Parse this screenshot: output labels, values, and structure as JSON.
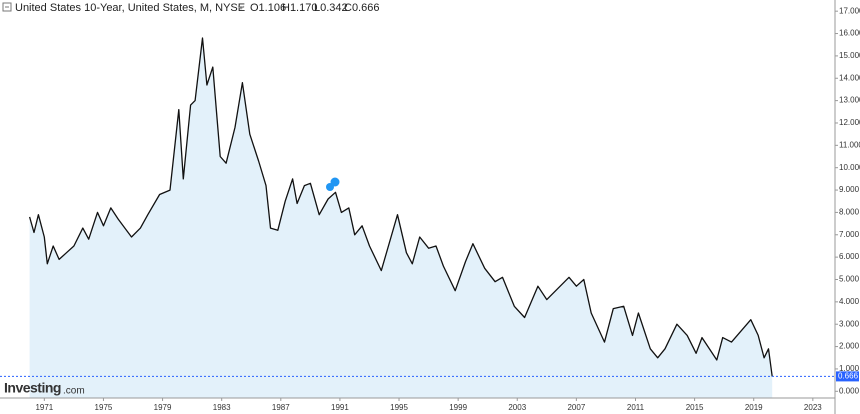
{
  "chart_data": {
    "type": "area",
    "title": "United States 10-Year, United States, M, NYSE",
    "ohlc": [
      "O1.106",
      "H1.170",
      "L0.342",
      "C0.666"
    ],
    "logo": [
      "Investing",
      ".com"
    ],
    "x": [
      1970.0,
      1970.3,
      1970.6,
      1971.0,
      1971.2,
      1971.6,
      1972.0,
      1972.5,
      1973.0,
      1973.6,
      1974.0,
      1974.6,
      1975.0,
      1975.5,
      1976.0,
      1976.9,
      1977.5,
      1978.0,
      1978.8,
      1979.5,
      1980.1,
      1980.4,
      1980.9,
      1981.2,
      1981.7,
      1982.0,
      1982.4,
      1982.9,
      1983.3,
      1983.9,
      1984.4,
      1984.9,
      1985.5,
      1986.0,
      1986.3,
      1986.8,
      1987.3,
      1987.8,
      1988.1,
      1988.6,
      1989.0,
      1989.6,
      1990.2,
      1990.7,
      1991.1,
      1991.6,
      1992.0,
      1992.5,
      1993.0,
      1993.8,
      1994.9,
      1995.5,
      1995.9,
      1996.4,
      1997.0,
      1997.5,
      1998.0,
      1998.8,
      1999.5,
      2000.0,
      2000.8,
      2001.5,
      2002.0,
      2002.8,
      2003.5,
      2004.4,
      2005.0,
      2006.5,
      2007.0,
      2007.5,
      2008.0,
      2008.9,
      2009.5,
      2010.2,
      2010.8,
      2011.2,
      2012.0,
      2012.5,
      2013.0,
      2013.8,
      2014.5,
      2015.1,
      2015.5,
      2016.5,
      2016.9,
      2017.5,
      2018.8,
      2019.3,
      2019.7,
      2020.0,
      2020.25
    ],
    "series": [
      {
        "color": "#111111",
        "fill": "#e3f1fa",
        "values": [
          7.8,
          7.1,
          7.9,
          6.9,
          5.7,
          6.5,
          5.9,
          6.2,
          6.5,
          7.3,
          6.8,
          8.0,
          7.4,
          8.2,
          7.7,
          6.9,
          7.3,
          7.9,
          8.8,
          9.0,
          12.6,
          9.5,
          12.8,
          13.0,
          15.8,
          13.7,
          14.5,
          10.5,
          10.2,
          11.8,
          13.8,
          11.5,
          10.3,
          9.2,
          7.3,
          7.2,
          8.5,
          9.5,
          8.4,
          9.2,
          9.3,
          7.9,
          8.6,
          8.9,
          8.0,
          8.2,
          7.0,
          7.4,
          6.5,
          5.4,
          7.9,
          6.2,
          5.7,
          6.9,
          6.4,
          6.5,
          5.6,
          4.5,
          5.8,
          6.6,
          5.5,
          4.9,
          5.1,
          3.8,
          3.3,
          4.7,
          4.1,
          5.1,
          4.7,
          5.0,
          3.5,
          2.2,
          3.7,
          3.8,
          2.5,
          3.5,
          1.9,
          1.5,
          1.9,
          3.0,
          2.5,
          1.7,
          2.4,
          1.4,
          2.4,
          2.2,
          3.2,
          2.5,
          1.5,
          1.9,
          0.666
        ]
      }
    ],
    "xlim": [
      1968,
      2024.5
    ],
    "xticks": [
      1971,
      1975,
      1979,
      1983,
      1987,
      1991,
      1995,
      1999,
      2003,
      2007,
      2011,
      2015,
      2019,
      2023
    ],
    "ylim": [
      -0.3,
      17.5
    ],
    "yticks": [
      {
        "value": 0,
        "label": "0.000"
      },
      {
        "value": 1,
        "label": "1.000"
      },
      {
        "value": 2,
        "label": "2.000"
      },
      {
        "value": 3,
        "label": "3.000"
      },
      {
        "value": 4,
        "label": "4.000"
      },
      {
        "value": 5,
        "label": "5.000"
      },
      {
        "value": 6,
        "label": "6.000"
      },
      {
        "value": 7,
        "label": "7.000"
      },
      {
        "value": 8,
        "label": "8.000"
      },
      {
        "value": 9,
        "label": "9.000"
      },
      {
        "value": 10,
        "label": "10.000"
      },
      {
        "value": 11,
        "label": "11.000"
      },
      {
        "value": 12,
        "label": "12.000"
      },
      {
        "value": 13,
        "label": "13.000"
      },
      {
        "value": 14,
        "label": "14.000"
      },
      {
        "value": 15,
        "label": "15.000"
      },
      {
        "value": 16,
        "label": "16.000"
      },
      {
        "value": 17,
        "label": "17.000"
      }
    ],
    "last_marker_color": "#2962ff"
  }
}
